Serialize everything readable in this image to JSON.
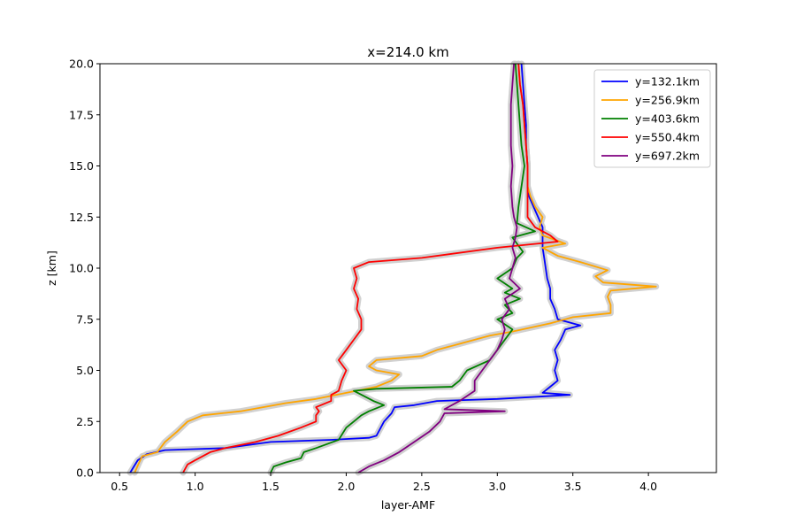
{
  "chart_data": {
    "type": "line",
    "title": "x=214.0 km",
    "xlabel": "layer-AMF",
    "ylabel": "z [km]",
    "xlim": [
      0.37,
      4.45
    ],
    "ylim": [
      0,
      20
    ],
    "xticks": [
      0.5,
      1.0,
      1.5,
      2.0,
      2.5,
      3.0,
      3.5,
      4.0
    ],
    "xtick_labels": [
      "0.5",
      "1.0",
      "1.5",
      "2.0",
      "2.5",
      "3.0",
      "3.5",
      "4.0"
    ],
    "yticks": [
      0,
      2.5,
      5,
      7.5,
      10,
      12.5,
      15,
      17.5,
      20
    ],
    "ytick_labels": [
      "0.0",
      "2.5",
      "5.0",
      "7.5",
      "10.0",
      "12.5",
      "15.0",
      "17.5",
      "20.0"
    ],
    "grid": false,
    "legend_position": "top-right",
    "uncertainty_color": "#cccccc",
    "series": [
      {
        "name": "y=132.1km",
        "color": "#0000ff",
        "points": [
          [
            0.57,
            0
          ],
          [
            0.62,
            0.6
          ],
          [
            0.68,
            0.9
          ],
          [
            0.8,
            1.1
          ],
          [
            1.2,
            1.2
          ],
          [
            1.5,
            1.5
          ],
          [
            1.9,
            1.6
          ],
          [
            2.15,
            1.7
          ],
          [
            2.2,
            1.8
          ],
          [
            2.25,
            2.5
          ],
          [
            2.3,
            2.9
          ],
          [
            2.32,
            3.2
          ],
          [
            2.45,
            3.3
          ],
          [
            2.6,
            3.5
          ],
          [
            3.0,
            3.6
          ],
          [
            3.48,
            3.8
          ],
          [
            3.3,
            3.9
          ],
          [
            3.35,
            4.2
          ],
          [
            3.4,
            4.5
          ],
          [
            3.38,
            5.0
          ],
          [
            3.4,
            5.5
          ],
          [
            3.38,
            6.0
          ],
          [
            3.42,
            6.5
          ],
          [
            3.45,
            7.0
          ],
          [
            3.55,
            7.2
          ],
          [
            3.4,
            7.5
          ],
          [
            3.38,
            8.0
          ],
          [
            3.35,
            8.5
          ],
          [
            3.35,
            9.0
          ],
          [
            3.33,
            9.5
          ],
          [
            3.32,
            10.0
          ],
          [
            3.31,
            10.5
          ],
          [
            3.3,
            11.0
          ],
          [
            3.3,
            11.5
          ],
          [
            3.3,
            12.0
          ],
          [
            3.27,
            12.5
          ],
          [
            3.24,
            13.0
          ],
          [
            3.21,
            13.5
          ],
          [
            3.2,
            14.0
          ],
          [
            3.2,
            15.0
          ],
          [
            3.19,
            16.0
          ],
          [
            3.19,
            17.0
          ],
          [
            3.18,
            18.0
          ],
          [
            3.17,
            19.0
          ],
          [
            3.16,
            20.0
          ]
        ]
      },
      {
        "name": "y=256.9km",
        "color": "#ffa500",
        "points": [
          [
            0.6,
            0
          ],
          [
            0.63,
            0.5
          ],
          [
            0.65,
            0.8
          ],
          [
            0.75,
            1.0
          ],
          [
            0.8,
            1.5
          ],
          [
            0.88,
            2.0
          ],
          [
            0.95,
            2.5
          ],
          [
            1.05,
            2.8
          ],
          [
            1.3,
            3.0
          ],
          [
            1.6,
            3.4
          ],
          [
            1.8,
            3.6
          ],
          [
            2.0,
            3.9
          ],
          [
            2.2,
            4.2
          ],
          [
            2.3,
            4.5
          ],
          [
            2.35,
            4.8
          ],
          [
            2.2,
            5.0
          ],
          [
            2.15,
            5.2
          ],
          [
            2.2,
            5.5
          ],
          [
            2.5,
            5.7
          ],
          [
            2.6,
            6.0
          ],
          [
            2.75,
            6.3
          ],
          [
            2.85,
            6.5
          ],
          [
            2.95,
            6.7
          ],
          [
            3.1,
            6.9
          ],
          [
            3.35,
            7.3
          ],
          [
            3.5,
            7.6
          ],
          [
            3.75,
            7.8
          ],
          [
            3.75,
            8.2
          ],
          [
            3.73,
            8.6
          ],
          [
            3.75,
            8.9
          ],
          [
            4.05,
            9.1
          ],
          [
            3.7,
            9.3
          ],
          [
            3.65,
            9.6
          ],
          [
            3.73,
            9.9
          ],
          [
            3.55,
            10.3
          ],
          [
            3.4,
            10.6
          ],
          [
            3.3,
            11.0
          ],
          [
            3.45,
            11.2
          ],
          [
            3.3,
            11.6
          ],
          [
            3.28,
            12.0
          ],
          [
            3.3,
            12.5
          ],
          [
            3.25,
            13.0
          ],
          [
            3.22,
            13.5
          ],
          [
            3.2,
            14.0
          ],
          [
            3.2,
            15.0
          ],
          [
            3.19,
            16.0
          ],
          [
            3.18,
            17.0
          ],
          [
            3.17,
            18.0
          ],
          [
            3.15,
            19.0
          ],
          [
            3.14,
            20.0
          ]
        ]
      },
      {
        "name": "y=403.6km",
        "color": "#008000",
        "points": [
          [
            1.5,
            0
          ],
          [
            1.52,
            0.3
          ],
          [
            1.6,
            0.5
          ],
          [
            1.7,
            0.7
          ],
          [
            1.72,
            1.0
          ],
          [
            1.8,
            1.2
          ],
          [
            1.95,
            1.6
          ],
          [
            2.0,
            2.2
          ],
          [
            2.05,
            2.5
          ],
          [
            2.1,
            2.8
          ],
          [
            2.15,
            3.0
          ],
          [
            2.25,
            3.3
          ],
          [
            2.18,
            3.5
          ],
          [
            2.05,
            4.0
          ],
          [
            2.2,
            4.1
          ],
          [
            2.7,
            4.2
          ],
          [
            2.75,
            4.5
          ],
          [
            2.8,
            5.0
          ],
          [
            2.95,
            5.5
          ],
          [
            3.0,
            6.0
          ],
          [
            3.05,
            6.5
          ],
          [
            3.1,
            7.0
          ],
          [
            3.0,
            7.5
          ],
          [
            3.1,
            7.8
          ],
          [
            3.05,
            8.2
          ],
          [
            3.15,
            8.5
          ],
          [
            3.05,
            8.8
          ],
          [
            3.1,
            9.0
          ],
          [
            3.0,
            9.5
          ],
          [
            3.1,
            10.0
          ],
          [
            3.13,
            10.5
          ],
          [
            3.17,
            10.8
          ],
          [
            3.15,
            11.0
          ],
          [
            3.1,
            11.5
          ],
          [
            3.25,
            11.8
          ],
          [
            3.13,
            12.2
          ],
          [
            3.14,
            13.0
          ],
          [
            3.16,
            14.0
          ],
          [
            3.18,
            15.0
          ],
          [
            3.16,
            16.0
          ],
          [
            3.15,
            17.0
          ],
          [
            3.14,
            18.0
          ],
          [
            3.13,
            19.0
          ],
          [
            3.12,
            20.0
          ]
        ]
      },
      {
        "name": "y=550.4km",
        "color": "#ff0000",
        "points": [
          [
            0.92,
            0
          ],
          [
            0.95,
            0.4
          ],
          [
            1.0,
            0.6
          ],
          [
            1.1,
            1.0
          ],
          [
            1.2,
            1.2
          ],
          [
            1.4,
            1.5
          ],
          [
            1.55,
            1.8
          ],
          [
            1.7,
            2.2
          ],
          [
            1.8,
            2.5
          ],
          [
            1.8,
            2.8
          ],
          [
            1.82,
            3.0
          ],
          [
            1.8,
            3.2
          ],
          [
            1.9,
            3.5
          ],
          [
            1.9,
            3.8
          ],
          [
            1.95,
            4.0
          ],
          [
            1.97,
            4.5
          ],
          [
            2.0,
            5.0
          ],
          [
            1.95,
            5.5
          ],
          [
            2.0,
            6.0
          ],
          [
            2.05,
            6.5
          ],
          [
            2.1,
            7.0
          ],
          [
            2.1,
            7.5
          ],
          [
            2.07,
            8.0
          ],
          [
            2.08,
            8.5
          ],
          [
            2.05,
            9.0
          ],
          [
            2.07,
            9.5
          ],
          [
            2.05,
            10.0
          ],
          [
            2.15,
            10.3
          ],
          [
            2.5,
            10.5
          ],
          [
            3.0,
            11.0
          ],
          [
            3.4,
            11.3
          ],
          [
            3.35,
            11.6
          ],
          [
            3.25,
            12.0
          ],
          [
            3.2,
            12.5
          ],
          [
            3.2,
            13.0
          ],
          [
            3.2,
            14.0
          ],
          [
            3.2,
            15.0
          ],
          [
            3.19,
            16.0
          ],
          [
            3.18,
            17.0
          ],
          [
            3.17,
            18.0
          ],
          [
            3.15,
            19.0
          ],
          [
            3.14,
            20.0
          ]
        ]
      },
      {
        "name": "y=697.2km",
        "color": "#800080",
        "points": [
          [
            2.08,
            0
          ],
          [
            2.15,
            0.3
          ],
          [
            2.25,
            0.6
          ],
          [
            2.35,
            1.0
          ],
          [
            2.45,
            1.5
          ],
          [
            2.55,
            2.0
          ],
          [
            2.62,
            2.5
          ],
          [
            2.65,
            2.9
          ],
          [
            3.05,
            3.0
          ],
          [
            2.65,
            3.1
          ],
          [
            2.75,
            3.5
          ],
          [
            2.85,
            4.0
          ],
          [
            2.85,
            4.5
          ],
          [
            2.9,
            5.0
          ],
          [
            2.95,
            5.5
          ],
          [
            3.0,
            6.0
          ],
          [
            3.03,
            6.5
          ],
          [
            3.05,
            7.0
          ],
          [
            3.03,
            7.5
          ],
          [
            3.08,
            8.0
          ],
          [
            3.05,
            8.5
          ],
          [
            3.15,
            9.0
          ],
          [
            3.08,
            9.5
          ],
          [
            3.1,
            10.0
          ],
          [
            3.12,
            10.5
          ],
          [
            3.1,
            11.0
          ],
          [
            3.12,
            11.5
          ],
          [
            3.13,
            12.0
          ],
          [
            3.11,
            12.5
          ],
          [
            3.1,
            13.0
          ],
          [
            3.09,
            14.0
          ],
          [
            3.1,
            15.0
          ],
          [
            3.09,
            16.0
          ],
          [
            3.09,
            17.0
          ],
          [
            3.09,
            18.0
          ],
          [
            3.1,
            19.0
          ],
          [
            3.11,
            20.0
          ]
        ]
      }
    ]
  }
}
